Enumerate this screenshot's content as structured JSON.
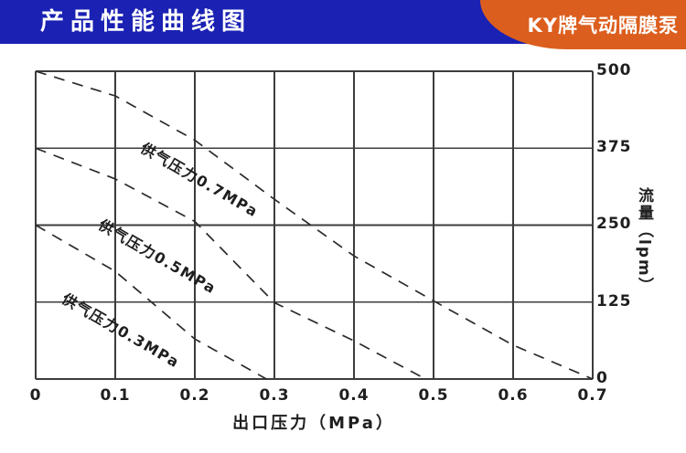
{
  "header": {
    "title": "产品性能曲线图",
    "badge": "KY牌气动隔膜泵"
  },
  "colors": {
    "header_bg": "#1a21b3",
    "badge_bg": "#dc5e1e",
    "header_text": "#ffffff",
    "grid": "#3c3c3c",
    "curve": "#2b2b2b",
    "tick_text": "#1f1f1f"
  },
  "chart_data": {
    "type": "line",
    "title": "产品性能曲线图",
    "xlabel": "出口压力（MPa）",
    "ylabel": "流量（lpm）",
    "xlim": [
      0,
      0.7
    ],
    "ylim": [
      0,
      500
    ],
    "grid": true,
    "line_style": "dashed",
    "x_ticks": [
      0,
      0.1,
      0.2,
      0.3,
      0.4,
      0.5,
      0.6,
      0.7
    ],
    "x_tick_labels": [
      "0",
      "0.1",
      "0.2",
      "0.3",
      "0.4",
      "0.5",
      "0.6",
      "0.7"
    ],
    "y_ticks": [
      500,
      375,
      250,
      125,
      0
    ],
    "y_tick_labels": [
      "500",
      "375",
      "250",
      "125",
      "0"
    ],
    "series": [
      {
        "name": "供气压力0.7MPa",
        "x": [
          0,
          0.1,
          0.2,
          0.3,
          0.4,
          0.5,
          0.6,
          0.7
        ],
        "flow_lpm": [
          500,
          460,
          388,
          292,
          200,
          127,
          55,
          0
        ]
      },
      {
        "name": "供气压力0.5MPa",
        "x": [
          0,
          0.1,
          0.2,
          0.3,
          0.4,
          0.49
        ],
        "flow_lpm": [
          375,
          325,
          256,
          124,
          62,
          0
        ]
      },
      {
        "name": "供气压力0.3MPa",
        "x": [
          0,
          0.1,
          0.2,
          0.29
        ],
        "flow_lpm": [
          250,
          175,
          65,
          0
        ]
      }
    ]
  }
}
